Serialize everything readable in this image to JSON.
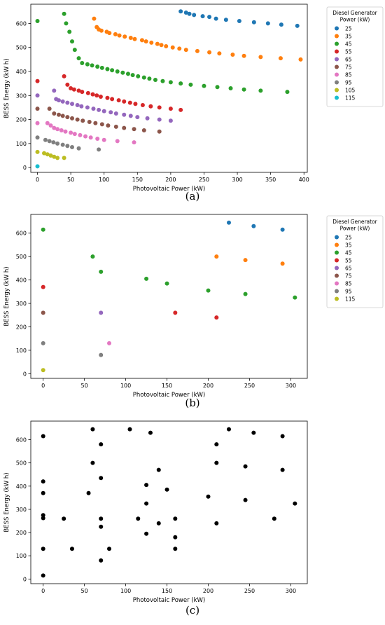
{
  "chart_data": [
    {
      "type": "scatter",
      "panel_label": "(a)",
      "xlabel": "Photovoltaic Power (kW)",
      "ylabel": "BESS Energy (kW h)",
      "xlim": [
        -10,
        405
      ],
      "ylim": [
        -20,
        680
      ],
      "xticks": [
        0,
        50,
        100,
        150,
        200,
        250,
        300,
        350,
        400
      ],
      "yticks": [
        0,
        100,
        200,
        300,
        400,
        500,
        600
      ],
      "legend_title": "Diesel Generator\nPower (kW)",
      "legend_position": "outside-right",
      "grid": false,
      "series": [
        {
          "name": "25",
          "color": "#1f77b4",
          "points": [
            [
              215,
              650
            ],
            [
              223,
              645
            ],
            [
              228,
              640
            ],
            [
              235,
              635
            ],
            [
              248,
              630
            ],
            [
              258,
              627
            ],
            [
              268,
              620
            ],
            [
              283,
              615
            ],
            [
              303,
              610
            ],
            [
              325,
              605
            ],
            [
              346,
              600
            ],
            [
              366,
              595
            ],
            [
              390,
              590
            ]
          ]
        },
        {
          "name": "35",
          "color": "#ff7f0e",
          "points": [
            [
              85,
              620
            ],
            [
              89,
              585
            ],
            [
              92,
              575
            ],
            [
              96,
              570
            ],
            [
              104,
              565
            ],
            [
              108,
              560
            ],
            [
              117,
              555
            ],
            [
              123,
              550
            ],
            [
              131,
              545
            ],
            [
              140,
              540
            ],
            [
              146,
              535
            ],
            [
              157,
              530
            ],
            [
              163,
              525
            ],
            [
              171,
              520
            ],
            [
              180,
              515
            ],
            [
              186,
              510
            ],
            [
              193,
              505
            ],
            [
              203,
              500
            ],
            [
              213,
              495
            ],
            [
              223,
              490
            ],
            [
              240,
              485
            ],
            [
              258,
              480
            ],
            [
              273,
              475
            ],
            [
              293,
              470
            ],
            [
              310,
              465
            ],
            [
              335,
              460
            ],
            [
              365,
              455
            ],
            [
              395,
              450
            ]
          ]
        },
        {
          "name": "45",
          "color": "#2ca02c",
          "points": [
            [
              0,
              610
            ],
            [
              40,
              640
            ],
            [
              43,
              600
            ],
            [
              48,
              565
            ],
            [
              52,
              525
            ],
            [
              56,
              490
            ],
            [
              62,
              455
            ],
            [
              67,
              435
            ],
            [
              75,
              430
            ],
            [
              82,
              425
            ],
            [
              90,
              420
            ],
            [
              97,
              415
            ],
            [
              105,
              410
            ],
            [
              112,
              405
            ],
            [
              120,
              400
            ],
            [
              128,
              395
            ],
            [
              136,
              390
            ],
            [
              143,
              385
            ],
            [
              151,
              380
            ],
            [
              160,
              375
            ],
            [
              168,
              370
            ],
            [
              177,
              365
            ],
            [
              188,
              360
            ],
            [
              200,
              355
            ],
            [
              215,
              350
            ],
            [
              230,
              345
            ],
            [
              250,
              340
            ],
            [
              270,
              335
            ],
            [
              290,
              330
            ],
            [
              310,
              325
            ],
            [
              335,
              320
            ],
            [
              375,
              315
            ]
          ]
        },
        {
          "name": "55",
          "color": "#d62728",
          "points": [
            [
              0,
              360
            ],
            [
              40,
              380
            ],
            [
              45,
              345
            ],
            [
              50,
              330
            ],
            [
              55,
              325
            ],
            [
              62,
              320
            ],
            [
              67,
              315
            ],
            [
              76,
              310
            ],
            [
              83,
              305
            ],
            [
              89,
              300
            ],
            [
              95,
              295
            ],
            [
              105,
              290
            ],
            [
              112,
              285
            ],
            [
              122,
              280
            ],
            [
              130,
              275
            ],
            [
              139,
              270
            ],
            [
              147,
              265
            ],
            [
              158,
              260
            ],
            [
              170,
              255
            ],
            [
              183,
              250
            ],
            [
              200,
              245
            ],
            [
              215,
              240
            ]
          ]
        },
        {
          "name": "65",
          "color": "#9467bd",
          "points": [
            [
              0,
              300
            ],
            [
              25,
              320
            ],
            [
              28,
              285
            ],
            [
              32,
              280
            ],
            [
              38,
              275
            ],
            [
              45,
              270
            ],
            [
              52,
              265
            ],
            [
              60,
              260
            ],
            [
              66,
              255
            ],
            [
              75,
              250
            ],
            [
              84,
              245
            ],
            [
              92,
              240
            ],
            [
              100,
              235
            ],
            [
              110,
              230
            ],
            [
              118,
              225
            ],
            [
              130,
              220
            ],
            [
              140,
              215
            ],
            [
              150,
              210
            ],
            [
              165,
              205
            ],
            [
              183,
              200
            ],
            [
              200,
              195
            ]
          ]
        },
        {
          "name": "75",
          "color": "#8c564b",
          "points": [
            [
              0,
              245
            ],
            [
              18,
              245
            ],
            [
              25,
              225
            ],
            [
              32,
              220
            ],
            [
              38,
              215
            ],
            [
              45,
              210
            ],
            [
              52,
              205
            ],
            [
              60,
              200
            ],
            [
              68,
              195
            ],
            [
              78,
              190
            ],
            [
              87,
              185
            ],
            [
              97,
              180
            ],
            [
              106,
              175
            ],
            [
              118,
              170
            ],
            [
              130,
              165
            ],
            [
              145,
              160
            ],
            [
              160,
              155
            ],
            [
              183,
              150
            ]
          ]
        },
        {
          "name": "85",
          "color": "#e377c2",
          "points": [
            [
              0,
              185
            ],
            [
              15,
              185
            ],
            [
              20,
              175
            ],
            [
              25,
              165
            ],
            [
              30,
              160
            ],
            [
              36,
              155
            ],
            [
              42,
              150
            ],
            [
              50,
              145
            ],
            [
              56,
              140
            ],
            [
              64,
              135
            ],
            [
              72,
              130
            ],
            [
              80,
              125
            ],
            [
              90,
              120
            ],
            [
              100,
              115
            ],
            [
              120,
              110
            ],
            [
              145,
              105
            ]
          ]
        },
        {
          "name": "95",
          "color": "#7f7f7f",
          "points": [
            [
              0,
              125
            ],
            [
              12,
              115
            ],
            [
              18,
              110
            ],
            [
              24,
              105
            ],
            [
              30,
              100
            ],
            [
              38,
              95
            ],
            [
              45,
              90
            ],
            [
              52,
              85
            ],
            [
              62,
              80
            ],
            [
              92,
              75
            ]
          ]
        },
        {
          "name": "105",
          "color": "#bcbd22",
          "points": [
            [
              0,
              65
            ],
            [
              10,
              60
            ],
            [
              15,
              55
            ],
            [
              20,
              50
            ],
            [
              25,
              45
            ],
            [
              30,
              40
            ],
            [
              40,
              40
            ]
          ]
        },
        {
          "name": "115",
          "color": "#17becf",
          "points": [
            [
              0,
              5
            ]
          ]
        }
      ]
    },
    {
      "type": "scatter",
      "panel_label": "(b)",
      "xlabel": "Photovoltaic Power (kW)",
      "ylabel": "BESS Energy (kW h)",
      "xlim": [
        -15,
        320
      ],
      "ylim": [
        -20,
        680
      ],
      "xticks": [
        0,
        50,
        100,
        150,
        200,
        250,
        300
      ],
      "yticks": [
        0,
        100,
        200,
        300,
        400,
        500,
        600
      ],
      "legend_title": "Diesel Generator\nPower (kW)",
      "legend_position": "outside-right",
      "grid": false,
      "legend_entries": [
        {
          "name": "25",
          "color": "#1f77b4"
        },
        {
          "name": "35",
          "color": "#ff7f0e"
        },
        {
          "name": "45",
          "color": "#2ca02c"
        },
        {
          "name": "55",
          "color": "#d62728"
        },
        {
          "name": "65",
          "color": "#9467bd"
        },
        {
          "name": "75",
          "color": "#8c564b"
        },
        {
          "name": "85",
          "color": "#e377c2"
        },
        {
          "name": "95",
          "color": "#7f7f7f"
        },
        {
          "name": "115",
          "color": "#bcbd22"
        }
      ],
      "series": [
        {
          "name": "25",
          "color": "#1f77b4",
          "points": [
            [
              225,
              645
            ],
            [
              255,
              630
            ],
            [
              290,
              615
            ]
          ]
        },
        {
          "name": "35",
          "color": "#ff7f0e",
          "points": [
            [
              210,
              500
            ],
            [
              245,
              485
            ],
            [
              290,
              470
            ]
          ]
        },
        {
          "name": "45",
          "color": "#2ca02c",
          "points": [
            [
              0,
              615
            ],
            [
              60,
              500
            ],
            [
              70,
              435
            ],
            [
              125,
              405
            ],
            [
              150,
              385
            ],
            [
              200,
              355
            ],
            [
              245,
              340
            ],
            [
              305,
              325
            ]
          ]
        },
        {
          "name": "55",
          "color": "#d62728",
          "points": [
            [
              0,
              370
            ],
            [
              160,
              260
            ],
            [
              210,
              240
            ]
          ]
        },
        {
          "name": "65",
          "color": "#9467bd",
          "points": [
            [
              70,
              260
            ]
          ]
        },
        {
          "name": "75",
          "color": "#8c564b",
          "points": [
            [
              0,
              260
            ]
          ]
        },
        {
          "name": "85",
          "color": "#e377c2",
          "points": [
            [
              80,
              130
            ]
          ]
        },
        {
          "name": "95",
          "color": "#7f7f7f",
          "points": [
            [
              0,
              130
            ],
            [
              70,
              80
            ]
          ]
        },
        {
          "name": "115",
          "color": "#bcbd22",
          "points": [
            [
              0,
              15
            ]
          ]
        }
      ]
    },
    {
      "type": "scatter",
      "panel_label": "(c)",
      "xlabel": "Photovoltaic Power (kW)",
      "ylabel": "BESS Energy (kW h)",
      "xlim": [
        -15,
        320
      ],
      "ylim": [
        -20,
        680
      ],
      "xticks": [
        0,
        50,
        100,
        150,
        200,
        250,
        300
      ],
      "yticks": [
        0,
        100,
        200,
        300,
        400,
        500,
        600
      ],
      "grid": false,
      "series": [
        {
          "color": "#000000",
          "points": [
            [
              0,
              615
            ],
            [
              0,
              420
            ],
            [
              0,
              370
            ],
            [
              0,
              275
            ],
            [
              0,
              262
            ],
            [
              0,
              130
            ],
            [
              0,
              15
            ],
            [
              25,
              260
            ],
            [
              35,
              130
            ],
            [
              55,
              370
            ],
            [
              60,
              500
            ],
            [
              60,
              645
            ],
            [
              70,
              580
            ],
            [
              70,
              435
            ],
            [
              70,
              260
            ],
            [
              70,
              225
            ],
            [
              70,
              80
            ],
            [
              80,
              130
            ],
            [
              105,
              645
            ],
            [
              115,
              260
            ],
            [
              125,
              405
            ],
            [
              125,
              325
            ],
            [
              125,
              195
            ],
            [
              130,
              630
            ],
            [
              140,
              470
            ],
            [
              140,
              240
            ],
            [
              150,
              385
            ],
            [
              160,
              260
            ],
            [
              160,
              180
            ],
            [
              160,
              130
            ],
            [
              200,
              355
            ],
            [
              210,
              580
            ],
            [
              210,
              500
            ],
            [
              210,
              240
            ],
            [
              225,
              645
            ],
            [
              245,
              485
            ],
            [
              245,
              340
            ],
            [
              255,
              630
            ],
            [
              280,
              260
            ],
            [
              290,
              615
            ],
            [
              290,
              470
            ],
            [
              305,
              325
            ]
          ]
        }
      ]
    }
  ]
}
